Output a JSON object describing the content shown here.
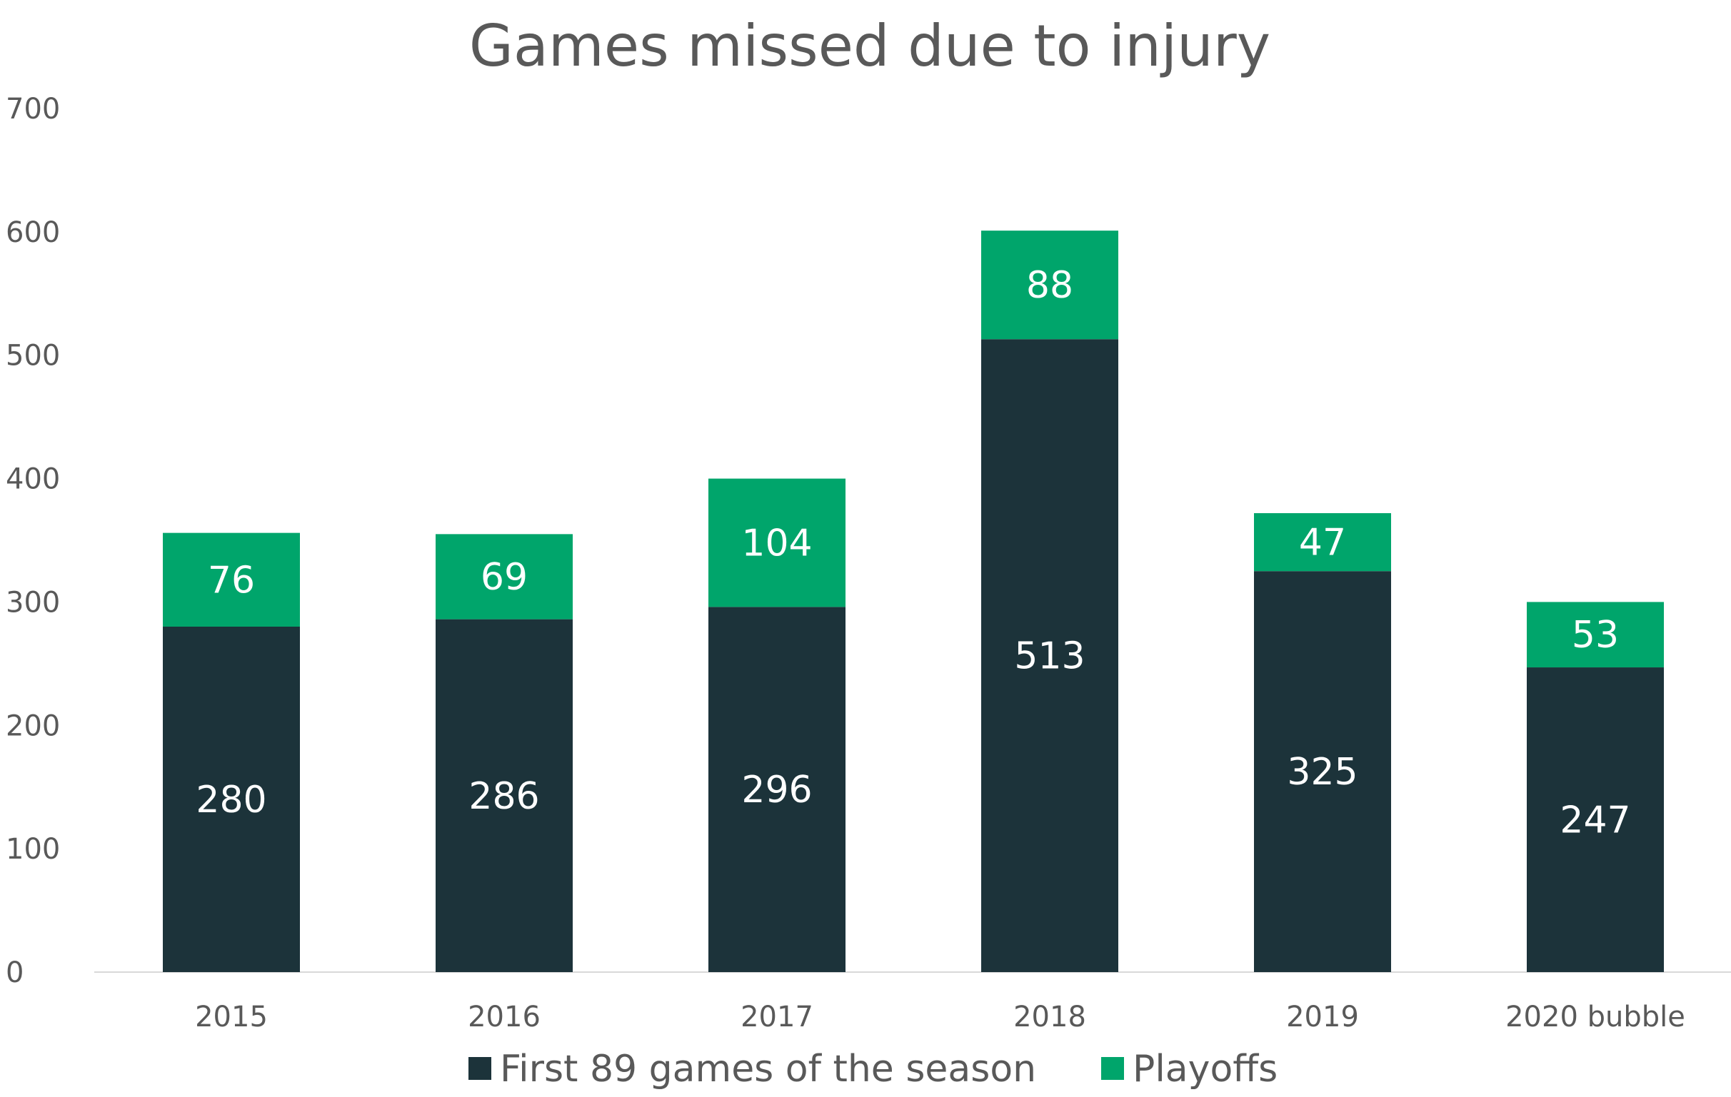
{
  "chart_data": {
    "type": "bar",
    "stacked": true,
    "title": "Games missed due to injury",
    "xlabel": "",
    "ylabel": "",
    "categories": [
      "2015",
      "2016",
      "2017",
      "2018",
      "2019",
      "2020 bubble"
    ],
    "series": [
      {
        "name": "First 89 games of the season",
        "color": "#1c333a",
        "values": [
          280,
          286,
          296,
          513,
          325,
          247
        ]
      },
      {
        "name": "Playoffs",
        "color": "#00a56b",
        "values": [
          76,
          69,
          104,
          88,
          47,
          53
        ]
      }
    ],
    "ylim": [
      0,
      700
    ],
    "yticks": [
      "0",
      "100",
      "200",
      "300",
      "400",
      "500",
      "600",
      "700"
    ],
    "grid": false,
    "data_labels": true,
    "legend_position": "bottom"
  }
}
